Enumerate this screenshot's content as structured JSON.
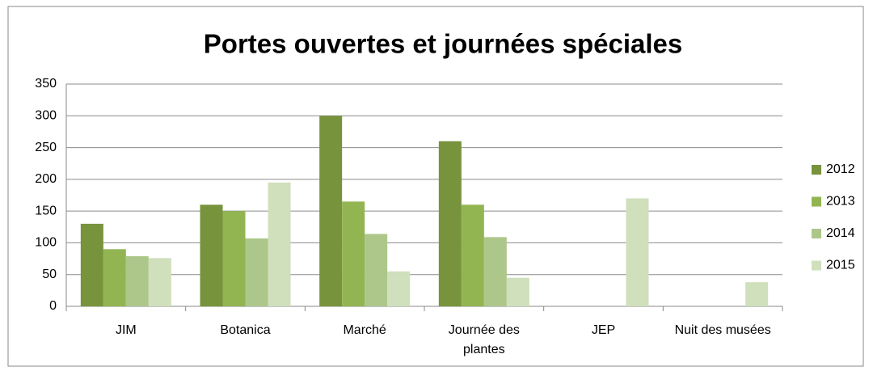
{
  "chart_data": {
    "type": "bar",
    "title": "Portes ouvertes et journées spéciales",
    "categories": [
      "JIM",
      "Botanica",
      "Marché",
      "Journée des plantes",
      "JEP",
      "Nuit des musées"
    ],
    "series": [
      {
        "name": "2012",
        "color": "#77933c",
        "values": [
          130,
          160,
          300,
          260,
          null,
          null
        ]
      },
      {
        "name": "2013",
        "color": "#92b552",
        "values": [
          90,
          150,
          165,
          160,
          null,
          null
        ]
      },
      {
        "name": "2014",
        "color": "#adc78a",
        "values": [
          79,
          107,
          114,
          109,
          null,
          null
        ]
      },
      {
        "name": "2015",
        "color": "#d0dfbc",
        "values": [
          76,
          195,
          55,
          45,
          170,
          38
        ]
      }
    ],
    "ylim": [
      0,
      350
    ],
    "yticks": [
      0,
      50,
      100,
      150,
      200,
      250,
      300,
      350
    ],
    "grid": true,
    "legend": "right"
  }
}
